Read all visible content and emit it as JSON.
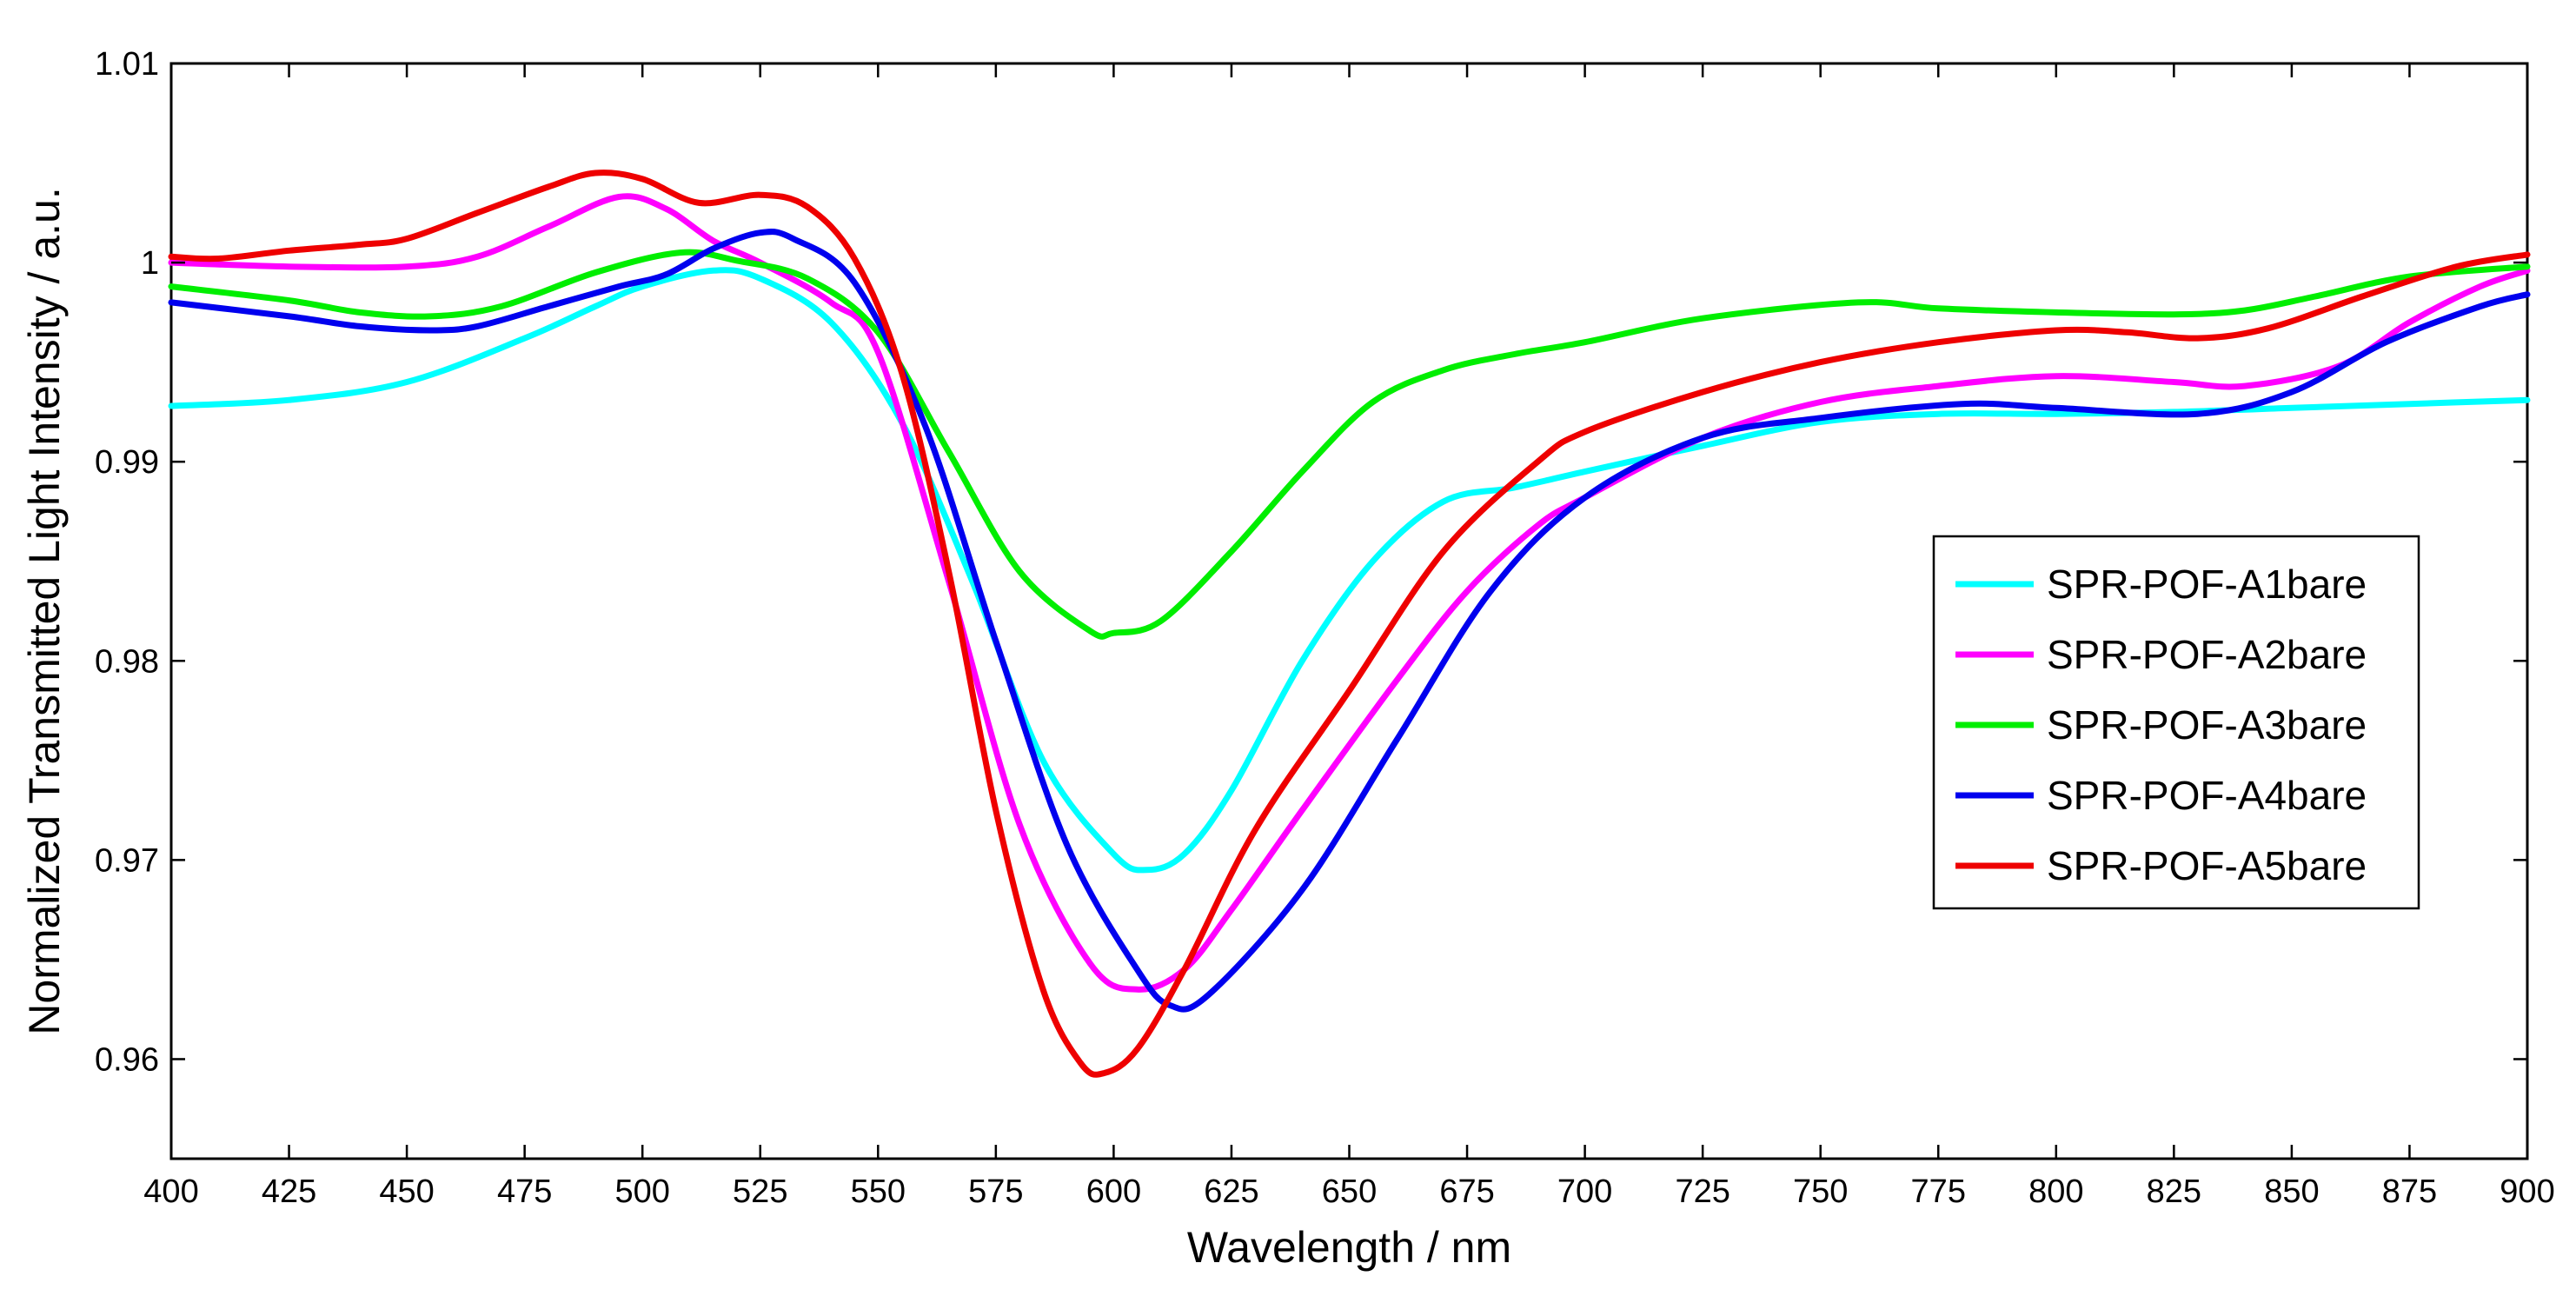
{
  "chart_data": {
    "type": "line",
    "title": "",
    "xlabel": "Wavelength / nm",
    "ylabel": "Normalized  Transmitted Light Intensity  / a.u.",
    "xlim": [
      400,
      900
    ],
    "ylim": [
      0.955,
      1.01
    ],
    "xticks": [
      400,
      425,
      450,
      475,
      500,
      525,
      550,
      575,
      600,
      625,
      650,
      675,
      700,
      725,
      750,
      775,
      800,
      825,
      850,
      875,
      900
    ],
    "yticks": [
      0.96,
      0.97,
      0.98,
      0.99,
      1,
      1.01
    ],
    "ytick_labels": [
      "0.96",
      "0.97",
      "0.98",
      "0.99",
      "1",
      "1.01"
    ],
    "grid": false,
    "legend_position": "right",
    "x": [
      400,
      425,
      450,
      475,
      500,
      525,
      550,
      575,
      600,
      625,
      650,
      675,
      700,
      725,
      750,
      775,
      800,
      825,
      850,
      875,
      900
    ],
    "series": [
      {
        "name": "SPR-POF-A1bare",
        "color": "#00ffff",
        "x": [
          400,
          425,
          450,
          475,
          490,
          500,
          515,
          525,
          540,
          555,
          570,
          585,
          600,
          607,
          615,
          625,
          640,
          655,
          670,
          685,
          700,
          725,
          750,
          775,
          800,
          825,
          850,
          875,
          900
        ],
        "values": [
          0.9928,
          0.9931,
          0.994,
          0.9962,
          0.9978,
          0.9988,
          0.9996,
          0.9992,
          0.997,
          0.992,
          0.984,
          0.975,
          0.9703,
          0.9695,
          0.9703,
          0.9735,
          0.98,
          0.985,
          0.988,
          0.9887,
          0.9895,
          0.9908,
          0.992,
          0.9924,
          0.9924,
          0.9925,
          0.9927,
          0.9929,
          0.9931
        ]
      },
      {
        "name": "SPR-POF-A2bare",
        "color": "#ff00ff",
        "x": [
          400,
          425,
          450,
          465,
          480,
          495,
          505,
          515,
          525,
          540,
          550,
          565,
          580,
          595,
          605,
          615,
          625,
          640,
          660,
          675,
          690,
          700,
          725,
          750,
          775,
          800,
          825,
          840,
          860,
          875,
          890,
          900
        ],
        "values": [
          1.0,
          0.9998,
          0.9998,
          1.0003,
          1.0018,
          1.0033,
          1.0027,
          1.0011,
          1.0,
          0.998,
          0.9955,
          0.984,
          0.9718,
          0.9648,
          0.9635,
          0.9645,
          0.9675,
          0.9725,
          0.979,
          0.9835,
          0.9868,
          0.9882,
          0.9912,
          0.993,
          0.9938,
          0.9943,
          0.994,
          0.9938,
          0.9948,
          0.997,
          0.9988,
          0.9996
        ]
      },
      {
        "name": "SPR-POF-A3bare",
        "color": "#00ee00",
        "x": [
          400,
          425,
          440,
          455,
          470,
          490,
          508,
          520,
          535,
          550,
          565,
          580,
          595,
          600,
          610,
          625,
          640,
          655,
          670,
          685,
          700,
          725,
          758,
          775,
          800,
          825,
          840,
          855,
          875,
          900
        ],
        "values": [
          0.9988,
          0.9981,
          0.9975,
          0.9973,
          0.9978,
          0.9995,
          1.0005,
          1.0001,
          0.9992,
          0.9965,
          0.9905,
          0.9845,
          0.9815,
          0.9814,
          0.982,
          0.9855,
          0.9895,
          0.993,
          0.9946,
          0.9954,
          0.996,
          0.9972,
          0.998,
          0.9977,
          0.9975,
          0.9974,
          0.9976,
          0.9983,
          0.9993,
          0.9998
        ]
      },
      {
        "name": "SPR-POF-A4bare",
        "color": "#0000ee",
        "x": [
          400,
          425,
          440,
          455,
          465,
          480,
          495,
          505,
          515,
          525,
          532,
          545,
          560,
          575,
          590,
          605,
          612,
          620,
          640,
          660,
          680,
          700,
          725,
          750,
          780,
          800,
          830,
          850,
          870,
          890,
          900
        ],
        "values": [
          0.998,
          0.9973,
          0.9968,
          0.9966,
          0.9968,
          0.9978,
          0.9988,
          0.9994,
          1.0007,
          1.0015,
          1.0012,
          0.999,
          0.9918,
          0.981,
          0.9708,
          0.9645,
          0.9627,
          0.9632,
          0.9685,
          0.976,
          0.9835,
          0.9882,
          0.9912,
          0.9922,
          0.9929,
          0.9927,
          0.9924,
          0.9935,
          0.996,
          0.9978,
          0.9984
        ]
      },
      {
        "name": "SPR-POF-A5bare",
        "color": "#ee0000",
        "x": [
          400,
          410,
          425,
          440,
          450,
          465,
          480,
          490,
          500,
          512,
          525,
          535,
          545,
          555,
          565,
          575,
          585,
          593,
          598,
          605,
          615,
          630,
          650,
          670,
          690,
          700,
          725,
          750,
          775,
          800,
          815,
          830,
          845,
          865,
          885,
          900
        ],
        "values": [
          1.0003,
          1.0002,
          1.0006,
          1.0009,
          1.0012,
          1.0025,
          1.0038,
          1.0045,
          1.0042,
          1.003,
          1.0034,
          1.0028,
          1.0002,
          0.9945,
          0.9845,
          0.9725,
          0.9635,
          0.9598,
          0.9593,
          0.9605,
          0.9645,
          0.9715,
          0.9785,
          0.9855,
          0.99,
          0.9915,
          0.9935,
          0.995,
          0.996,
          0.9966,
          0.9965,
          0.9962,
          0.9967,
          0.9983,
          0.9998,
          1.0004
        ]
      }
    ]
  }
}
